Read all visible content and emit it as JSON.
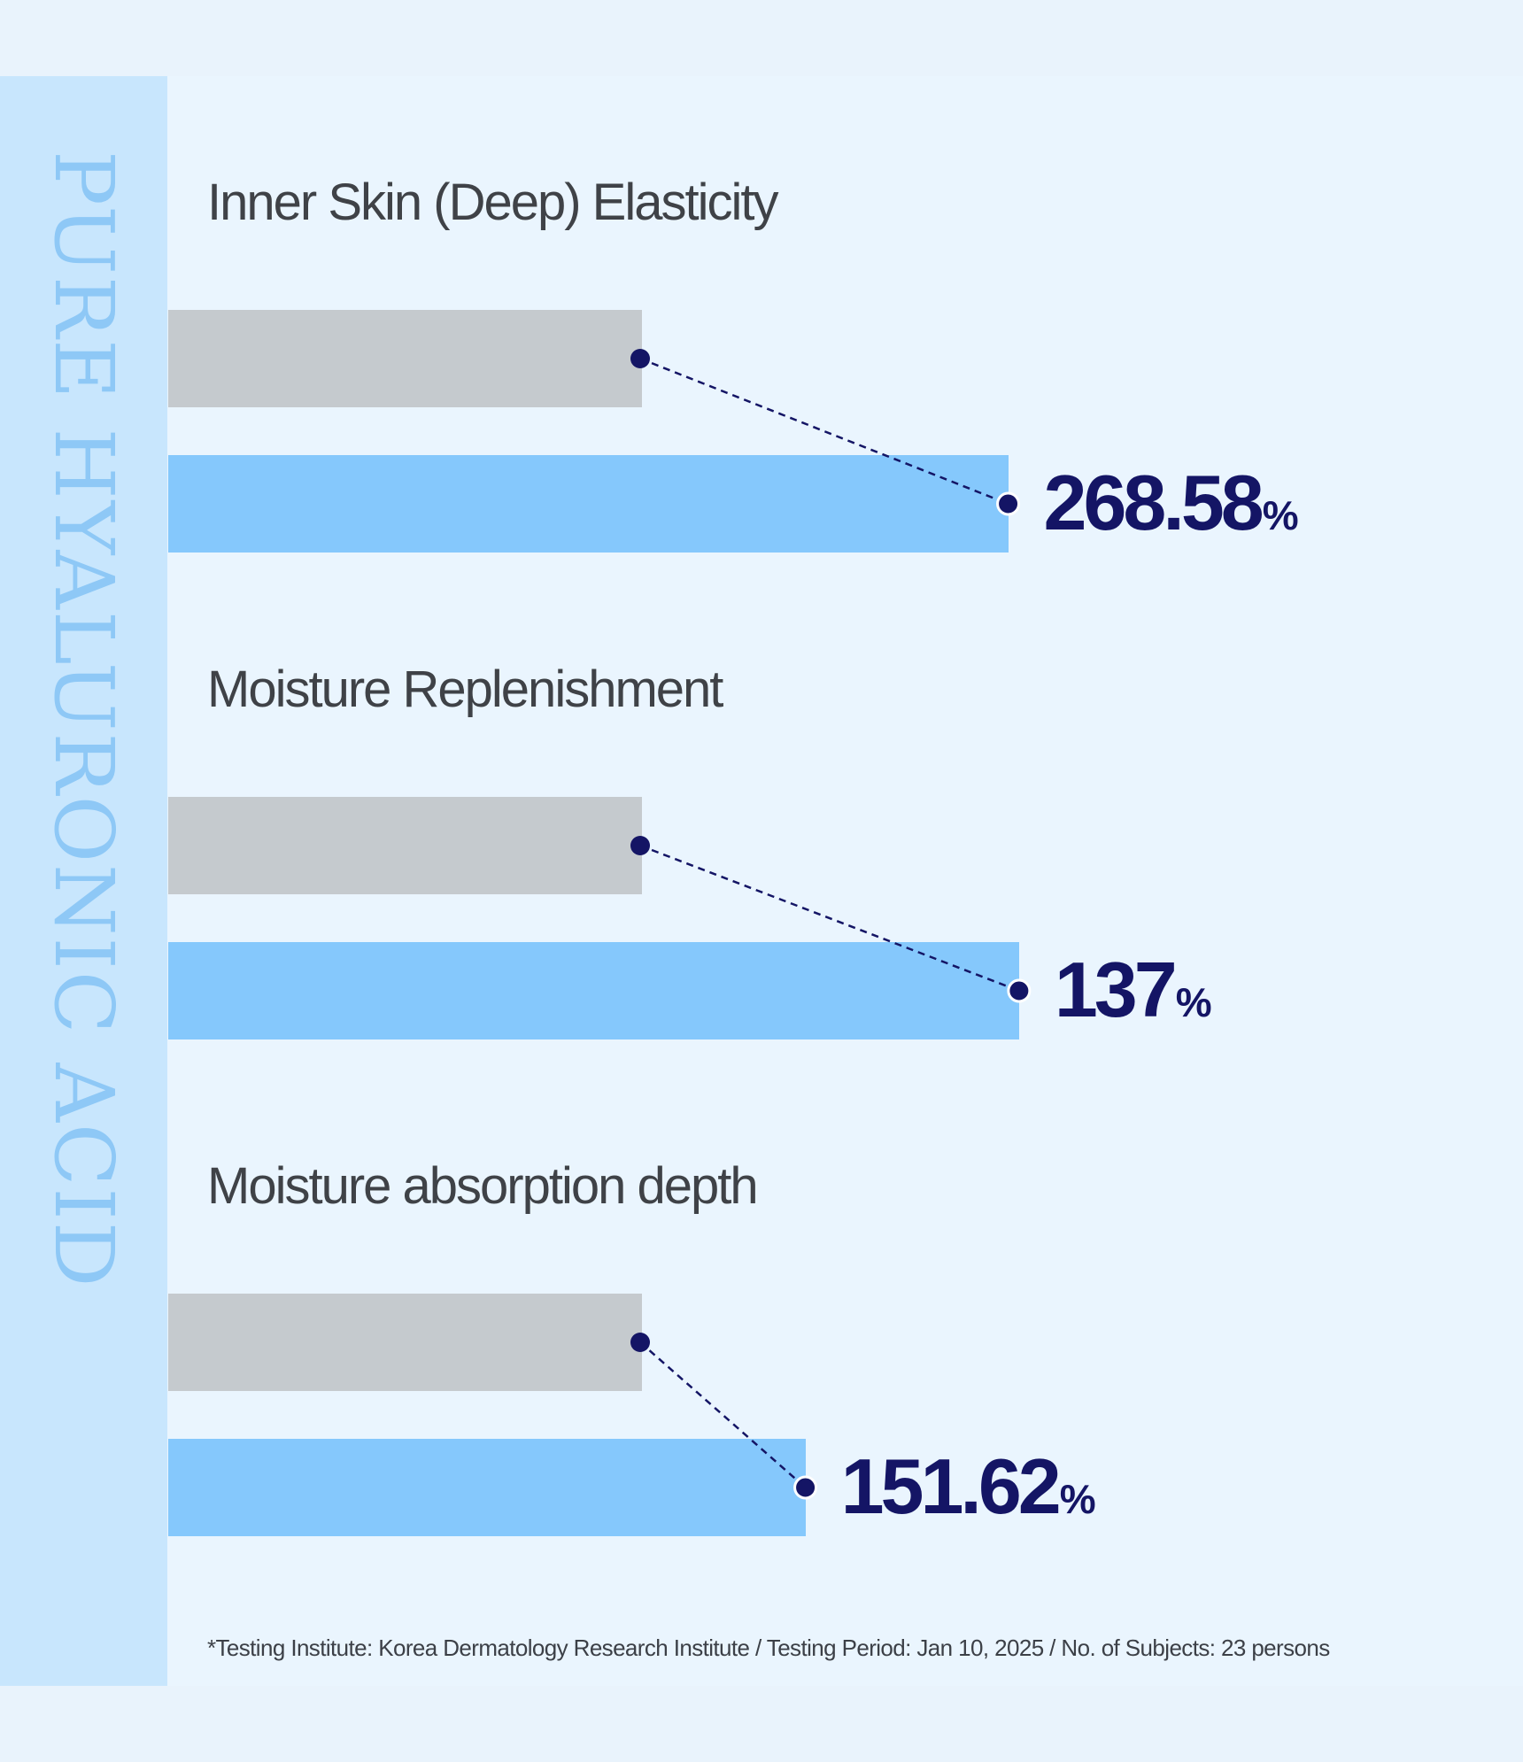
{
  "side_title": "PURE HYALURONIC ACID",
  "chart_data": {
    "type": "bar",
    "categories": [
      "Inner Skin (Deep) Elasticity",
      "Moisture Replenishment",
      "Moisture absorption depth"
    ],
    "series": [
      {
        "values": [
          100,
          100,
          100
        ]
      },
      {
        "values": [
          268.58,
          137,
          151.62
        ]
      }
    ],
    "value_labels": [
      "268.58",
      "137",
      "151.62"
    ],
    "unit": "%",
    "colors": {
      "before": "#c5cace",
      "after": "#85c8fc",
      "accent": "#141565"
    }
  },
  "footnote": "*Testing Institute: Korea Dermatology Research Institute / Testing Period: Jan 10, 2025 / No. of Subjects: 23 persons"
}
